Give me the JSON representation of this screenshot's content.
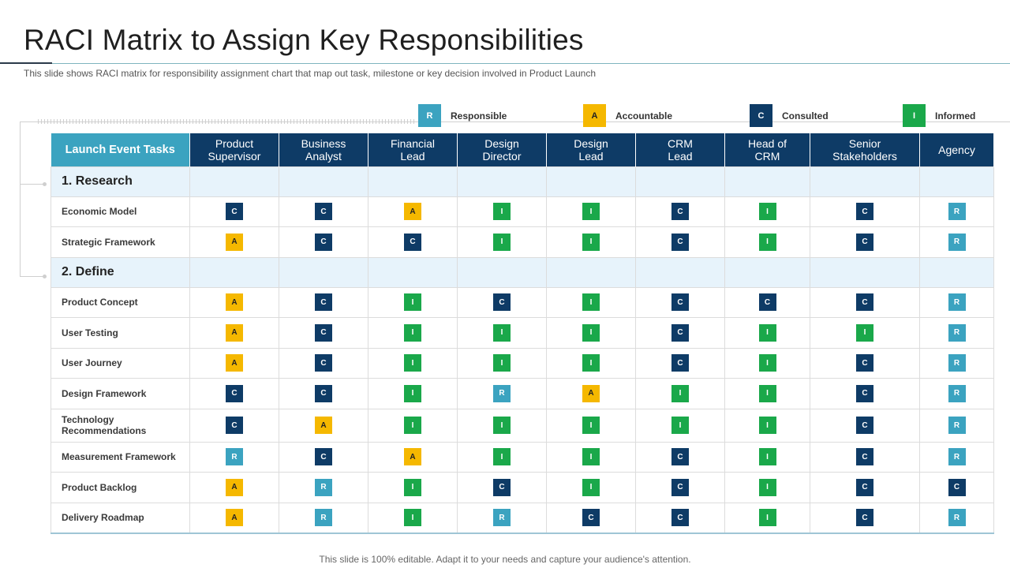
{
  "title": "RACI Matrix to Assign Key Responsibilities",
  "subtitle": "This slide shows RACI matrix for responsibility assignment chart that map out task, milestone or key decision involved in Product Launch",
  "legend": [
    {
      "code": "R",
      "label": "Responsible"
    },
    {
      "code": "A",
      "label": "Accountable"
    },
    {
      "code": "C",
      "label": "Consulted"
    },
    {
      "code": "I",
      "label": "Informed"
    }
  ],
  "colors": {
    "R": "#3ba3c0",
    "A": "#f5b800",
    "C": "#0e3b66",
    "I": "#1aa84a"
  },
  "table": {
    "task_header": "Launch Event Tasks",
    "columns": [
      "Product\nSupervisor",
      "Business\nAnalyst",
      "Financial\nLead",
      "Design\nDirector",
      "Design\nLead",
      "CRM\nLead",
      "Head of\nCRM",
      "Senior\nStakeholders",
      "Agency"
    ],
    "sections": [
      {
        "name": "1. Research",
        "rows": [
          {
            "task": "Economic Model",
            "values": [
              "C",
              "C",
              "A",
              "I",
              "I",
              "C",
              "I",
              "C",
              "R"
            ]
          },
          {
            "task": "Strategic Framework",
            "values": [
              "A",
              "C",
              "C",
              "I",
              "I",
              "C",
              "I",
              "C",
              "R"
            ]
          }
        ]
      },
      {
        "name": "2. Define",
        "rows": [
          {
            "task": "Product Concept",
            "values": [
              "A",
              "C",
              "I",
              "C",
              "I",
              "C",
              "C",
              "C",
              "R"
            ]
          },
          {
            "task": "User Testing",
            "values": [
              "A",
              "C",
              "I",
              "I",
              "I",
              "C",
              "I",
              "I",
              "R"
            ]
          },
          {
            "task": "User Journey",
            "values": [
              "A",
              "C",
              "I",
              "I",
              "I",
              "C",
              "I",
              "C",
              "R"
            ]
          },
          {
            "task": "Design Framework",
            "values": [
              "C",
              "C",
              "I",
              "R",
              "A",
              "I",
              "I",
              "C",
              "R"
            ]
          },
          {
            "task": "Technology\nRecommendations",
            "values": [
              "C",
              "A",
              "I",
              "I",
              "I",
              "I",
              "I",
              "C",
              "R"
            ]
          },
          {
            "task": "Measurement Framework",
            "values": [
              "R",
              "C",
              "A",
              "I",
              "I",
              "C",
              "I",
              "C",
              "R"
            ]
          },
          {
            "task": "Product Backlog",
            "values": [
              "A",
              "R",
              "I",
              "C",
              "I",
              "C",
              "I",
              "C",
              "C"
            ]
          },
          {
            "task": "Delivery Roadmap",
            "values": [
              "A",
              "R",
              "I",
              "R",
              "C",
              "C",
              "I",
              "C",
              "R"
            ]
          }
        ]
      }
    ]
  },
  "footer": "This slide is 100% editable. Adapt it to your needs and capture your audience's attention."
}
